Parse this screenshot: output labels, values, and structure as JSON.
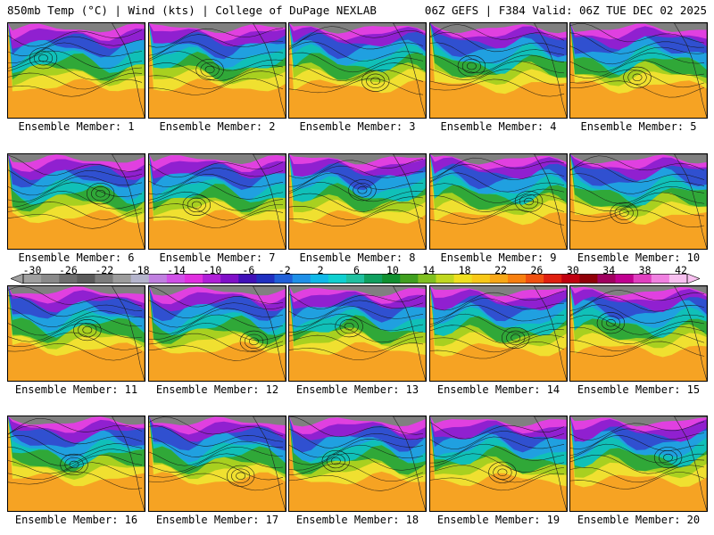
{
  "header": {
    "left": "850mb Temp (°C) | Wind (kts) | College of DuPage NEXLAB",
    "right": "06Z GEFS | F384 Valid: 06Z TUE DEC 02 2025"
  },
  "colorbar": {
    "ticks": [
      "-30",
      "-26",
      "-22",
      "-18",
      "-14",
      "-10",
      "-6",
      "-2",
      "2",
      "6",
      "10",
      "14",
      "18",
      "22",
      "26",
      "30",
      "34",
      "38",
      "42"
    ],
    "colors": [
      "#a0a0a0",
      "#8a8a8a",
      "#6e6e6e",
      "#5a5a5a",
      "#7c7c7c",
      "#9c9c9c",
      "#b4b4cc",
      "#c080e0",
      "#d050e8",
      "#e030e0",
      "#b020d8",
      "#8010c8",
      "#4010b8",
      "#2030c0",
      "#2060d8",
      "#2090e8",
      "#10b8e8",
      "#10d0d0",
      "#20c0a0",
      "#10a060",
      "#109030",
      "#40a020",
      "#80c020",
      "#c0d820",
      "#f0e020",
      "#f8c818",
      "#f8a818",
      "#f88010",
      "#f05010",
      "#e02010",
      "#c00010",
      "#900008",
      "#a00060",
      "#c00090",
      "#e040c0",
      "#f080e0",
      "#f8c0f0"
    ]
  },
  "panels": [
    {
      "label": "Ensemble Member: 1"
    },
    {
      "label": "Ensemble Member: 2"
    },
    {
      "label": "Ensemble Member: 3"
    },
    {
      "label": "Ensemble Member: 4"
    },
    {
      "label": "Ensemble Member: 5"
    },
    {
      "label": "Ensemble Member: 6"
    },
    {
      "label": "Ensemble Member: 7"
    },
    {
      "label": "Ensemble Member: 8"
    },
    {
      "label": "Ensemble Member: 9"
    },
    {
      "label": "Ensemble Member: 10"
    },
    {
      "label": "Ensemble Member: 11"
    },
    {
      "label": "Ensemble Member: 12"
    },
    {
      "label": "Ensemble Member: 13"
    },
    {
      "label": "Ensemble Member: 14"
    },
    {
      "label": "Ensemble Member: 15"
    },
    {
      "label": "Ensemble Member: 16"
    },
    {
      "label": "Ensemble Member: 17"
    },
    {
      "label": "Ensemble Member: 18"
    },
    {
      "label": "Ensemble Member: 19"
    },
    {
      "label": "Ensemble Member: 20"
    }
  ]
}
